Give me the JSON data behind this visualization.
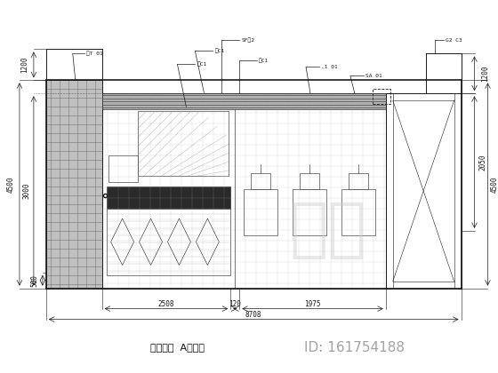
{
  "line_color": "#1a1a1a",
  "title": "男卫生间  A立面图",
  "id_text": "ID: 161754188",
  "watermark": "知本"
}
